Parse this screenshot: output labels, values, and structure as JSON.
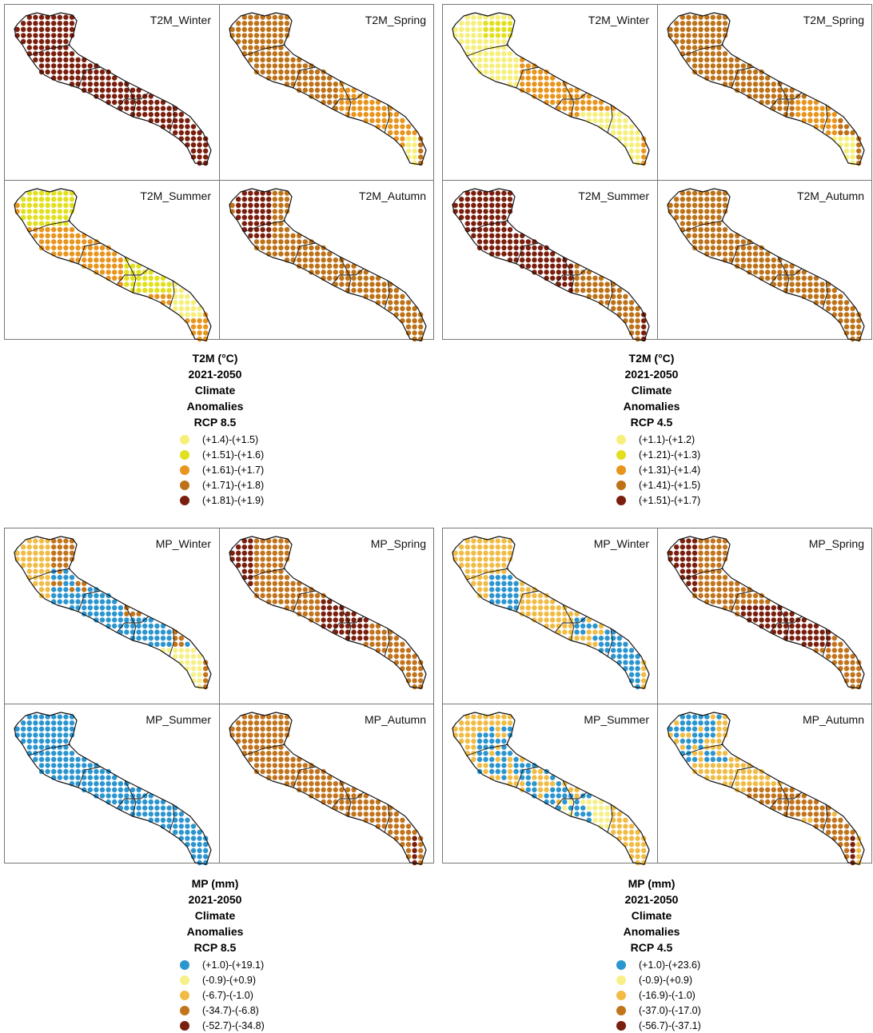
{
  "figures": [
    {
      "id": "t2m_rcp85",
      "panels": [
        "T2M_Winter",
        "T2M_Spring",
        "T2M_Summer",
        "T2M_Autumn"
      ],
      "legend": {
        "lines": [
          "T2M (°C)",
          "2021-2050",
          "Climate",
          "Anomalies",
          "RCP 8.5"
        ],
        "items": [
          {
            "label": "(+1.4)-(+1.5)",
            "color": "#f6ef7a"
          },
          {
            "label": "(+1.51)-(+1.6)",
            "color": "#e2e01d"
          },
          {
            "label": "(+1.61)-(+1.7)",
            "color": "#e8951e"
          },
          {
            "label": "(+1.71)-(+1.8)",
            "color": "#bd7218"
          },
          {
            "label": "(+1.81)-(+1.9)",
            "color": "#7a1e0d"
          }
        ]
      }
    },
    {
      "id": "t2m_rcp45",
      "panels": [
        "T2M_Winter",
        "T2M_Spring",
        "T2M_Summer",
        "T2M_Autumn"
      ],
      "legend": {
        "lines": [
          "T2M (°C)",
          "2021-2050",
          "Climate",
          "Anomalies",
          "RCP 4.5"
        ],
        "items": [
          {
            "label": "(+1.1)-(+1.2)",
            "color": "#f6ef7a"
          },
          {
            "label": "(+1.21)-(+1.3)",
            "color": "#e2e01d"
          },
          {
            "label": "(+1.31)-(+1.4)",
            "color": "#e8951e"
          },
          {
            "label": "(+1.41)-(+1.5)",
            "color": "#bd7218"
          },
          {
            "label": "(+1.51)-(+1.7)",
            "color": "#7a1e0d"
          }
        ]
      }
    },
    {
      "id": "mp_rcp85",
      "panels": [
        "MP_Winter",
        "MP_Spring",
        "MP_Summer",
        "MP_Autumn"
      ],
      "legend": {
        "lines": [
          "MP (mm)",
          "2021-2050",
          "Climate",
          "Anomalies",
          "RCP 8.5"
        ],
        "items": [
          {
            "label": "(+1.0)-(+19.1)",
            "color": "#2b95cf"
          },
          {
            "label": "(-0.9)-(+0.9)",
            "color": "#f7f08a"
          },
          {
            "label": "(-6.7)-(-1.0)",
            "color": "#f0bc45"
          },
          {
            "label": "(-34.7)-(-6.8)",
            "color": "#c2741d"
          },
          {
            "label": "(-52.7)-(-34.8)",
            "color": "#7a1e0d"
          }
        ]
      }
    },
    {
      "id": "mp_rcp45",
      "panels": [
        "MP_Winter",
        "MP_Spring",
        "MP_Summer",
        "MP_Autumn"
      ],
      "legend": {
        "lines": [
          "MP (mm)",
          "2021-2050",
          "Climate",
          "Anomalies",
          "RCP 4.5"
        ],
        "items": [
          {
            "label": "(+1.0)-(+23.6)",
            "color": "#2b95cf"
          },
          {
            "label": "(-0.9)-(+0.9)",
            "color": "#f7f08a"
          },
          {
            "label": "(-16.9)-(-1.0)",
            "color": "#f0bc45"
          },
          {
            "label": "(-37.0)-(-17.0)",
            "color": "#c2741d"
          },
          {
            "label": "(-56.7)-(-37.1)",
            "color": "#7a1e0d"
          }
        ]
      }
    }
  ],
  "panel_fill": [
    [
      {
        "base": 4,
        "zones": []
      },
      {
        "base": 3,
        "zones": [
          {
            "c": 2,
            "x": [
              150,
              250
            ],
            "y": [
              0,
              999
            ]
          },
          {
            "c": 0,
            "x": [
              232,
              250
            ],
            "y": [
              160,
              999
            ]
          }
        ]
      },
      {
        "base": 2,
        "zones": [
          {
            "c": 1,
            "x": [
              20,
              90
            ],
            "y": [
              0,
              55
            ]
          },
          {
            "c": 1,
            "x": [
              150,
              210
            ],
            "y": [
              95,
              140
            ]
          },
          {
            "c": 0,
            "x": [
              210,
              250
            ],
            "y": [
              125,
              175
            ]
          }
        ]
      },
      {
        "base": 3,
        "zones": [
          {
            "c": 4,
            "x": [
              20,
              65
            ],
            "y": [
              0,
              75
            ]
          }
        ]
      }
    ],
    [
      {
        "base": 2,
        "zones": [
          {
            "c": 0,
            "x": [
              0,
              95
            ],
            "y": [
              0,
              100
            ]
          },
          {
            "c": 1,
            "x": [
              50,
              95
            ],
            "y": [
              20,
              40
            ]
          },
          {
            "c": 0,
            "x": [
              170,
              250
            ],
            "y": [
              130,
              999
            ]
          }
        ]
      },
      {
        "base": 3,
        "zones": [
          {
            "c": 2,
            "x": [
              175,
              225
            ],
            "y": [
              120,
              999
            ]
          },
          {
            "c": 0,
            "x": [
              220,
              250
            ],
            "y": [
              160,
              999
            ]
          }
        ]
      },
      {
        "base": 4,
        "zones": [
          {
            "c": 3,
            "x": [
              160,
              250
            ],
            "y": [
              0,
              999
            ]
          }
        ]
      },
      {
        "base": 3,
        "zones": []
      }
    ],
    [
      {
        "base": 3,
        "zones": [
          {
            "c": 2,
            "x": [
              0,
              60
            ],
            "y": [
              0,
              999
            ]
          },
          {
            "c": 0,
            "x": [
              55,
              150
            ],
            "y": [
              80,
              130
            ]
          },
          {
            "c": 0,
            "x": [
              150,
              210
            ],
            "y": [
              110,
              160
            ]
          },
          {
            "c": 0,
            "x": [
              225,
              250
            ],
            "y": [
              135,
              160
            ]
          },
          {
            "c": 1,
            "x": [
              190,
              250
            ],
            "y": [
              150,
              999
            ]
          }
        ]
      },
      {
        "base": 3,
        "zones": [
          {
            "c": 4,
            "x": [
              0,
              40
            ],
            "y": [
              0,
              70
            ]
          },
          {
            "c": 4,
            "x": [
              125,
              185
            ],
            "y": [
              90,
              140
            ]
          }
        ]
      },
      {
        "base": 0,
        "zones": []
      },
      {
        "base": 3,
        "zones": [
          {
            "c": 4,
            "x": [
              238,
              250
            ],
            "y": [
              160,
              999
            ]
          }
        ]
      }
    ],
    [
      {
        "base": 2,
        "zones": [
          {
            "c": 0,
            "x": [
              200,
              250
            ],
            "y": [
              120,
              999
            ]
          },
          {
            "c": 0,
            "x": [
              55,
              95
            ],
            "y": [
              60,
              100
            ]
          }
        ]
      },
      {
        "base": 3,
        "zones": [
          {
            "c": 4,
            "x": [
              0,
              50
            ],
            "y": [
              0,
              80
            ]
          },
          {
            "c": 4,
            "x": [
              105,
              215
            ],
            "y": [
              95,
              145
            ]
          }
        ]
      },
      {
        "base": 2,
        "zones": [
          {
            "c": 1,
            "x": [
              150,
              210
            ],
            "y": [
              120,
              165
            ]
          }
        ]
      },
      {
        "base": 2,
        "zones": [
          {
            "c": 3,
            "x": [
              110,
              215
            ],
            "y": [
              100,
              140
            ]
          },
          {
            "c": 3,
            "x": [
              195,
              250
            ],
            "y": [
              140,
              999
            ]
          },
          {
            "c": 4,
            "x": [
              240,
              250
            ],
            "y": [
              160,
              999
            ]
          }
        ]
      }
    ]
  ],
  "panel_blue": [
    [
      null,
      null,
      null,
      null
    ],
    [
      null,
      null,
      null,
      null
    ],
    [
      {
        "x": [
          55,
          150
        ],
        "y": [
          50,
          115
        ],
        "n": 34
      },
      null,
      null,
      null
    ],
    [
      {
        "x": [
          165,
          250
        ],
        "y": [
          110,
          175
        ],
        "n": 30
      },
      null,
      {
        "x": [
          40,
          190
        ],
        "y": [
          30,
          145
        ],
        "n": 18
      },
      {
        "x": [
          10,
          85
        ],
        "y": [
          10,
          75
        ],
        "n": 30
      }
    ]
  ]
}
